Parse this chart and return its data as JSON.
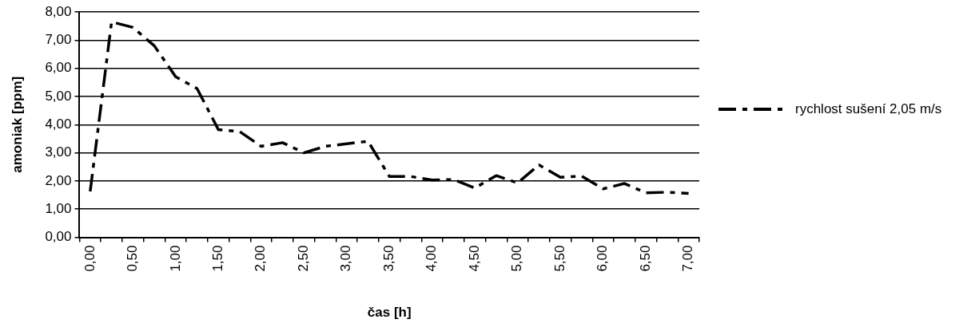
{
  "chart_data": {
    "type": "line",
    "xlabel": "čas [h]",
    "ylabel": "amoniak [ppm]",
    "categories": [
      "0,00",
      null,
      "0,50",
      null,
      "1,00",
      null,
      "1,50",
      null,
      "2,00",
      null,
      "2,50",
      null,
      "3,00",
      null,
      "3,50",
      null,
      "4,00",
      null,
      "4,50",
      null,
      "5,00",
      null,
      "5,50",
      null,
      "6,00",
      null,
      "6,50",
      null,
      "7,00"
    ],
    "series": [
      {
        "name": "rychlost sušení 2,05 m/s",
        "color": "#000000",
        "values": [
          1.63,
          7.65,
          7.45,
          6.8,
          5.7,
          5.28,
          3.82,
          3.75,
          3.23,
          3.36,
          3.0,
          3.23,
          3.32,
          3.41,
          2.16,
          2.16,
          2.03,
          2.05,
          1.75,
          2.19,
          1.93,
          2.57,
          2.13,
          2.17,
          1.72,
          1.91,
          1.58,
          1.6,
          1.56
        ]
      }
    ],
    "ylim": [
      0,
      8
    ],
    "yticks": [
      {
        "value": 0,
        "label": "0,00"
      },
      {
        "value": 1,
        "label": "1,00"
      },
      {
        "value": 2,
        "label": "2,00"
      },
      {
        "value": 3,
        "label": "3,00"
      },
      {
        "value": 4,
        "label": "4,00"
      },
      {
        "value": 5,
        "label": "5,00"
      },
      {
        "value": 6,
        "label": "6,00"
      },
      {
        "value": 7,
        "label": "7,00"
      },
      {
        "value": 8,
        "label": "8,00"
      }
    ],
    "grid": "y",
    "legend": "right",
    "marker": "none",
    "line_style": "dashed"
  }
}
